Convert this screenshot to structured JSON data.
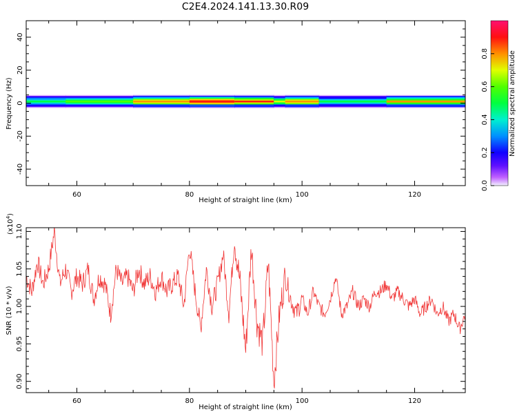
{
  "title": "C2E4.2024.141.13.30.R09",
  "colors": {
    "snr_line": "#f03232",
    "axis": "#000000",
    "band_core": "#ff2a8c",
    "band_edge": "#1a00ff"
  },
  "chart_data": [
    {
      "type": "heatmap",
      "xlabel": "Height of straight line (km)",
      "ylabel": "Frequency (Hz)",
      "xlim": [
        51,
        129
      ],
      "ylim": [
        -50,
        50
      ],
      "xticks": [
        60,
        80,
        100,
        120
      ],
      "yticks": [
        40,
        20,
        0,
        -20,
        -40
      ],
      "grid": false,
      "colorbar": {
        "label": "Normalized spectral amplitude",
        "range": [
          0,
          1
        ],
        "ticks": [
          "0.0",
          "0.2",
          "0.4",
          "0.6",
          "0.8"
        ],
        "colormap": "rainbow (magenta-blue-cyan-green-yellow-red-pink)"
      },
      "band": {
        "center_hz": 1,
        "half_width_hz": 4,
        "segments": [
          {
            "x": [
              51,
              58
            ],
            "peak": 0.55
          },
          {
            "x": [
              58,
              70
            ],
            "peak": 0.65
          },
          {
            "x": [
              70,
              80
            ],
            "peak": 0.85
          },
          {
            "x": [
              80,
              88
            ],
            "peak": 0.98
          },
          {
            "x": [
              88,
              95
            ],
            "peak": 0.9
          },
          {
            "x": [
              95,
              97
            ],
            "peak": 0.7
          },
          {
            "x": [
              97,
              103
            ],
            "peak": 0.85
          },
          {
            "x": [
              103,
              115
            ],
            "peak": 0.5
          },
          {
            "x": [
              115,
              129
            ],
            "peak": 0.8
          }
        ]
      }
    },
    {
      "type": "line",
      "xlabel": "Height of straight line (km)",
      "ylabel": "SNR (10 * v/v)",
      "scale_note": "(x10",
      "scale_exp": "4",
      "scale_close": ")",
      "xlim": [
        51,
        129
      ],
      "ylim": [
        0.885,
        1.105
      ],
      "xticks": [
        60,
        80,
        100,
        120
      ],
      "yticks": [
        "1.10",
        "1.05",
        "1.00",
        "0.95",
        "0.90"
      ],
      "grid": false,
      "series": [
        {
          "x": [
            51,
            52,
            53,
            54,
            55,
            56,
            57,
            58,
            59,
            60,
            61,
            62,
            63,
            64,
            65,
            66,
            67,
            68,
            69,
            70,
            71,
            72,
            73,
            74,
            75,
            76,
            77,
            78,
            79,
            80,
            81,
            82,
            83,
            84,
            85,
            86,
            87,
            88,
            89,
            90,
            91,
            92,
            93,
            94,
            95,
            96,
            97,
            98,
            99,
            100,
            101,
            102,
            103,
            104,
            105,
            106,
            107,
            108,
            109,
            110,
            111,
            112,
            113,
            114,
            115,
            116,
            117,
            118,
            119,
            120,
            121,
            122,
            123,
            124,
            125,
            126,
            127,
            128,
            129
          ],
          "y": [
            1.04,
            1.02,
            1.06,
            1.03,
            1.05,
            1.1,
            1.03,
            1.05,
            1.02,
            1.04,
            1.03,
            1.05,
            1.01,
            1.04,
            1.03,
            0.99,
            1.05,
            1.03,
            1.04,
            1.02,
            1.05,
            1.03,
            1.04,
            1.02,
            1.04,
            1.02,
            1.03,
            1.04,
            1.0,
            1.08,
            1.02,
            0.97,
            1.05,
            1.0,
            1.03,
            1.07,
            0.99,
            1.09,
            1.03,
            0.94,
            1.08,
            0.98,
            0.95,
            1.06,
            0.9,
            0.99,
            1.04,
            1.01,
            0.99,
            1.01,
            0.99,
            1.02,
            1.0,
            0.99,
            1.01,
            1.04,
            0.99,
            1.0,
            1.02,
            1.0,
            1.01,
            1.0,
            1.02,
            1.02,
            1.03,
            1.01,
            1.02,
            1.01,
            1.0,
            1.01,
            0.99,
            1.0,
            1.01,
            0.99,
            1.0,
            0.98,
            0.99,
            0.97,
            0.99
          ]
        }
      ]
    }
  ]
}
